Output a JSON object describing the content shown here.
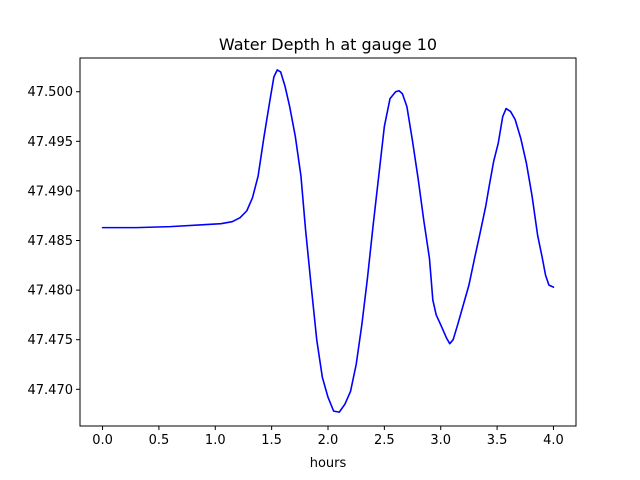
{
  "chart_data": {
    "type": "line",
    "title": "Water Depth h at gauge 10",
    "xlabel": "hours",
    "ylabel": "",
    "xlim": [
      -0.2,
      4.2
    ],
    "ylim": [
      47.4663,
      47.5034
    ],
    "grid": false,
    "legend": "none",
    "x_ticks": [
      0.0,
      0.5,
      1.0,
      1.5,
      2.0,
      2.5,
      3.0,
      3.5,
      4.0
    ],
    "x_tick_labels": [
      "0.0",
      "0.5",
      "1.0",
      "1.5",
      "2.0",
      "2.5",
      "3.0",
      "3.5",
      "4.0"
    ],
    "y_ticks": [
      47.47,
      47.475,
      47.48,
      47.485,
      47.49,
      47.495,
      47.5
    ],
    "y_tick_labels": [
      "47.470",
      "47.475",
      "47.480",
      "47.485",
      "47.490",
      "47.495",
      "47.500"
    ],
    "series": [
      {
        "color": "#0000ff",
        "x": [
          0.0,
          0.3,
          0.6,
          0.9,
          1.05,
          1.15,
          1.22,
          1.28,
          1.33,
          1.38,
          1.43,
          1.48,
          1.52,
          1.55,
          1.58,
          1.62,
          1.66,
          1.71,
          1.76,
          1.8,
          1.85,
          1.9,
          1.95,
          2.0,
          2.05,
          2.1,
          2.15,
          2.2,
          2.25,
          2.3,
          2.35,
          2.4,
          2.45,
          2.5,
          2.55,
          2.6,
          2.63,
          2.66,
          2.7,
          2.75,
          2.8,
          2.85,
          2.9,
          2.93,
          2.96,
          3.0,
          3.05,
          3.08,
          3.11,
          3.15,
          3.2,
          3.25,
          3.3,
          3.35,
          3.4,
          3.43,
          3.47,
          3.51,
          3.55,
          3.58,
          3.62,
          3.66,
          3.71,
          3.76,
          3.81,
          3.86,
          3.9,
          3.93,
          3.96,
          4.0
        ],
        "y": [
          47.4863,
          47.4863,
          47.4864,
          47.4866,
          47.4867,
          47.4869,
          47.4873,
          47.488,
          47.4893,
          47.4915,
          47.4953,
          47.4988,
          47.5015,
          47.5022,
          47.502,
          47.5005,
          47.4985,
          47.4955,
          47.4915,
          47.4862,
          47.4805,
          47.475,
          47.4712,
          47.4692,
          47.4678,
          47.4677,
          47.4685,
          47.4698,
          47.4725,
          47.4765,
          47.4812,
          47.4865,
          47.4915,
          47.4965,
          47.4993,
          47.5,
          47.5001,
          47.4998,
          47.4985,
          47.495,
          47.4912,
          47.487,
          47.4832,
          47.479,
          47.4775,
          47.4765,
          47.4752,
          47.4746,
          47.475,
          47.4765,
          47.4785,
          47.4805,
          47.4832,
          47.4858,
          47.4885,
          47.4905,
          47.493,
          47.4948,
          47.4975,
          47.4983,
          47.498,
          47.4972,
          47.4953,
          47.4928,
          47.4895,
          47.4855,
          47.4833,
          47.4815,
          47.4805,
          47.4803
        ]
      }
    ]
  }
}
